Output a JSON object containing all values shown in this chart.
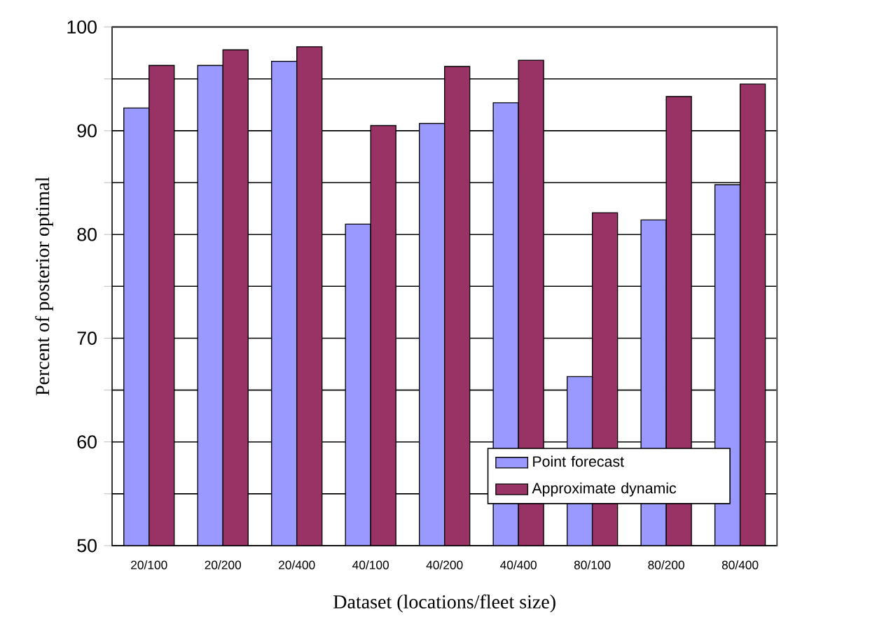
{
  "chart_data": {
    "type": "bar",
    "xlabel": "Dataset (locations/fleet size)",
    "ylabel": "Percent of posterior optimal",
    "categories": [
      "20/100",
      "20/200",
      "20/400",
      "40/100",
      "40/200",
      "40/400",
      "80/100",
      "80/200",
      "80/400"
    ],
    "series": [
      {
        "name": "Point forecast",
        "color": "#9999ff",
        "values": [
          92.2,
          96.3,
          96.7,
          81.0,
          90.7,
          92.7,
          66.3,
          81.4,
          84.8
        ]
      },
      {
        "name": "Approximate dynamic",
        "color": "#993366",
        "values": [
          96.3,
          97.8,
          98.1,
          90.5,
          96.2,
          96.8,
          82.1,
          93.3,
          94.5
        ]
      }
    ],
    "ylim": [
      50,
      100
    ],
    "yticks": [
      50,
      {
        "value": 55,
        "label": null
      },
      60,
      {
        "value": 65,
        "label": null
      },
      70,
      {
        "value": 75,
        "label": null
      },
      80,
      {
        "value": 85,
        "label": null
      },
      90,
      {
        "value": 95,
        "label": null
      },
      100
    ],
    "grid": "y",
    "legend": "bottom right"
  }
}
